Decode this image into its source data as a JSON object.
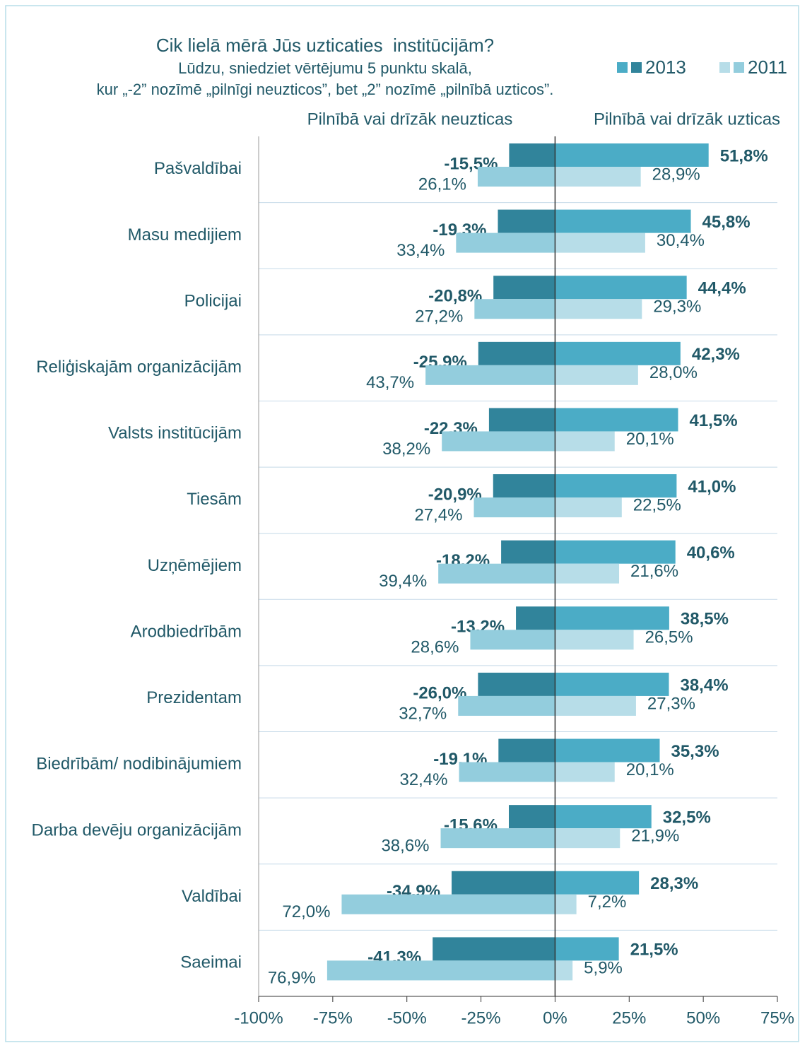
{
  "chart_data": {
    "type": "diverging-bar",
    "title": "Cik lielā mērā Jūs uzticaties  institūcijām?",
    "subtitle": [
      "Lūdzu, sniedziet vērtējumu 5 punktu skalā,",
      "kur „-2” nozīmē „pilnīgi neuzticos”, bet „2” nozīmē „pilnībā uzticos”."
    ],
    "left_heading": "Pilnībā vai drīzāk neuzticas",
    "right_heading": "Pilnībā vai drīzāk uzticas",
    "categories": [
      "Pašvaldībai",
      "Masu medijiem",
      "Policijai",
      "Reliģiskajām organizācijām",
      "Valsts institūcijām",
      "Tiesām",
      "Uzņēmējiem",
      "Arodbiedrībām",
      "Prezidentam",
      "Biedrībām/ nodibinājumiem",
      "Darba devēju organizācijām",
      "Valdībai",
      "Saeimai"
    ],
    "series": [
      {
        "name": "2013",
        "trust": {
          "color": "#4bacc6",
          "values": [
            51.8,
            45.8,
            44.4,
            42.3,
            41.5,
            41.0,
            40.6,
            38.5,
            38.4,
            35.3,
            32.5,
            28.3,
            21.5
          ],
          "value_labels": [
            "51,8%",
            "45,8%",
            "44,4%",
            "42,3%",
            "41,5%",
            "41,0%",
            "40,6%",
            "38,5%",
            "38,4%",
            "35,3%",
            "32,5%",
            "28,3%",
            "21,5%"
          ]
        },
        "distrust": {
          "color": "#31849b",
          "values": [
            -15.5,
            -19.3,
            -20.8,
            -25.9,
            -22.3,
            -20.9,
            -18.2,
            -13.2,
            -26.0,
            -19.1,
            -15.6,
            -34.9,
            -41.3
          ],
          "value_labels": [
            "-15,5%",
            "-19,3%",
            "-20,8%",
            "-25,9%",
            "-22,3%",
            "-20,9%",
            "-18,2%",
            "-13,2%",
            "-26,0%",
            "-19,1%",
            "-15,6%",
            "-34,9%",
            "-41,3%"
          ]
        }
      },
      {
        "name": "2011",
        "trust": {
          "color": "#b7dde8",
          "values": [
            28.9,
            30.4,
            29.3,
            28.0,
            20.1,
            22.5,
            21.6,
            26.5,
            27.3,
            20.1,
            21.9,
            7.2,
            5.9
          ],
          "value_labels": [
            "28,9%",
            "30,4%",
            "29,3%",
            "28,0%",
            "20,1%",
            "22,5%",
            "21,6%",
            "26,5%",
            "27,3%",
            "20,1%",
            "21,9%",
            "7,2%",
            "5,9%"
          ]
        },
        "distrust": {
          "color": "#93cddd",
          "values": [
            -26.1,
            -33.4,
            -27.2,
            -43.7,
            -38.2,
            -27.4,
            -39.4,
            -28.6,
            -32.7,
            -32.4,
            -38.6,
            -72.0,
            -76.9
          ],
          "value_labels": [
            "26,1%",
            "33,4%",
            "27,2%",
            "43,7%",
            "38,2%",
            "27,4%",
            "39,4%",
            "28,6%",
            "32,7%",
            "32,4%",
            "38,6%",
            "72,0%",
            "76,9%"
          ]
        }
      }
    ],
    "xlim": [
      -100,
      75
    ],
    "xticks": [
      {
        "value": -100,
        "label": "-100%"
      },
      {
        "value": -75,
        "label": "-75%"
      },
      {
        "value": -50,
        "label": "-50%"
      },
      {
        "value": -25,
        "label": "-25%"
      },
      {
        "value": 0,
        "label": "0%"
      },
      {
        "value": 25,
        "label": "25%"
      },
      {
        "value": 50,
        "label": "50%"
      },
      {
        "value": 75,
        "label": "75%"
      }
    ],
    "grid": true
  }
}
